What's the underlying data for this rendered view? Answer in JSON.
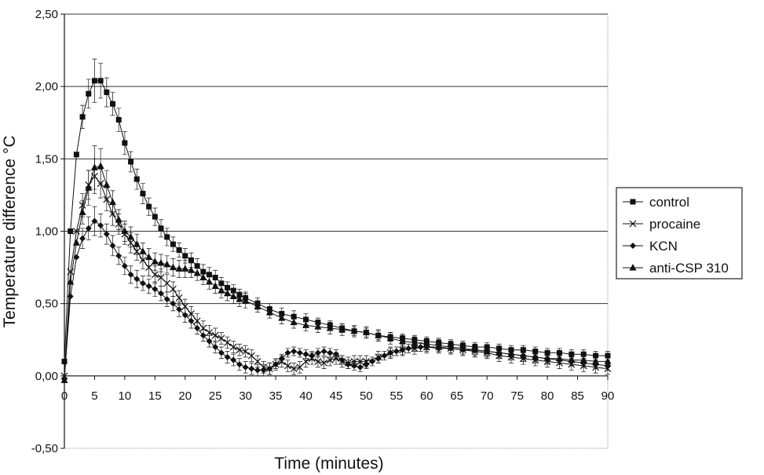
{
  "chart_data": {
    "type": "line",
    "title": "",
    "xlabel": "Time (minutes)",
    "ylabel": "Temperature difference °C",
    "xlim": [
      0,
      90
    ],
    "ylim": [
      -0.5,
      2.5
    ],
    "xticks": [
      0,
      5,
      10,
      15,
      20,
      25,
      30,
      35,
      40,
      45,
      50,
      55,
      60,
      65,
      70,
      75,
      80,
      85,
      90
    ],
    "xtick_labels": [
      "0",
      "5",
      "10",
      "15",
      "20",
      "25",
      "30",
      "35",
      "40",
      "45",
      "50",
      "55",
      "60",
      "65",
      "70",
      "75",
      "80",
      "85",
      "90"
    ],
    "yticks": [
      -0.5,
      0,
      0.5,
      1.0,
      1.5,
      2.0,
      2.5
    ],
    "ytick_labels": [
      "-0,50",
      "0,00",
      "0,50",
      "1,00",
      "1,50",
      "2,00",
      "2,50"
    ],
    "grid": "horizontal major gridlines",
    "legend_position": "right",
    "colors": {
      "series": "#111111",
      "grid": "#333333",
      "plot_border": "#999999"
    },
    "series": [
      {
        "name": "control",
        "marker": "square",
        "x": [
          0,
          1,
          2,
          3,
          4,
          5,
          6,
          7,
          8,
          9,
          10,
          11,
          12,
          13,
          14,
          15,
          16,
          17,
          18,
          19,
          20,
          21,
          22,
          23,
          24,
          25,
          26,
          27,
          28,
          29,
          30,
          32,
          34,
          36,
          38,
          40,
          42,
          44,
          46,
          48,
          50,
          52,
          54,
          56,
          58,
          60,
          62,
          64,
          66,
          68,
          70,
          72,
          74,
          76,
          78,
          80,
          82,
          84,
          86,
          88,
          90
        ],
        "y": [
          0.1,
          1.0,
          1.53,
          1.79,
          1.95,
          2.04,
          2.04,
          1.96,
          1.88,
          1.77,
          1.61,
          1.48,
          1.36,
          1.26,
          1.17,
          1.1,
          1.02,
          0.96,
          0.91,
          0.87,
          0.83,
          0.8,
          0.76,
          0.72,
          0.7,
          0.68,
          0.64,
          0.61,
          0.59,
          0.56,
          0.54,
          0.5,
          0.46,
          0.43,
          0.41,
          0.39,
          0.37,
          0.35,
          0.33,
          0.31,
          0.3,
          0.28,
          0.27,
          0.26,
          0.25,
          0.24,
          0.23,
          0.22,
          0.21,
          0.2,
          0.2,
          0.19,
          0.18,
          0.18,
          0.17,
          0.16,
          0.16,
          0.15,
          0.15,
          0.14,
          0.14
        ],
        "error": [
          0,
          0,
          0,
          0.08,
          0.1,
          0.15,
          0.12,
          0.1,
          0.08,
          0.08,
          0.08,
          0.07,
          0.07,
          0.07,
          0.06,
          0.06,
          0.06,
          0.06,
          0.05,
          0.05,
          0.05,
          0.05,
          0.05,
          0.05,
          0.05,
          0.05,
          0.04,
          0.04,
          0.04,
          0.04,
          0.04,
          0.04,
          0.04,
          0.04,
          0.04,
          0.04,
          0.03,
          0.03,
          0.03,
          0.03,
          0.03,
          0.03,
          0.03,
          0.03,
          0.03,
          0.03,
          0.03,
          0.03,
          0.03,
          0.03,
          0.03,
          0.03,
          0.03,
          0.03,
          0.03,
          0.03,
          0.03,
          0.03,
          0.03,
          0.03,
          0.03
        ]
      },
      {
        "name": "procaine",
        "marker": "x",
        "x": [
          0,
          1,
          2,
          3,
          4,
          5,
          6,
          7,
          8,
          9,
          10,
          11,
          12,
          13,
          14,
          15,
          16,
          17,
          18,
          19,
          20,
          21,
          22,
          23,
          24,
          25,
          26,
          27,
          28,
          29,
          30,
          31,
          32,
          33,
          34,
          35,
          36,
          37,
          38,
          39,
          40,
          41,
          42,
          43,
          44,
          45,
          46,
          47,
          48,
          49,
          50,
          52,
          54,
          56,
          58,
          60,
          62,
          64,
          66,
          68,
          70,
          72,
          74,
          76,
          78,
          80,
          82,
          84,
          86,
          88,
          90
        ],
        "y": [
          0.0,
          0.72,
          1.0,
          1.18,
          1.32,
          1.38,
          1.33,
          1.22,
          1.12,
          1.05,
          0.98,
          0.92,
          0.86,
          0.8,
          0.75,
          0.7,
          0.68,
          0.64,
          0.6,
          0.54,
          0.48,
          0.43,
          0.38,
          0.33,
          0.3,
          0.28,
          0.26,
          0.23,
          0.2,
          0.18,
          0.17,
          0.14,
          0.1,
          0.06,
          0.05,
          0.08,
          0.1,
          0.07,
          0.05,
          0.06,
          0.1,
          0.12,
          0.1,
          0.09,
          0.11,
          0.12,
          0.1,
          0.09,
          0.1,
          0.1,
          0.1,
          0.13,
          0.16,
          0.18,
          0.19,
          0.2,
          0.2,
          0.19,
          0.18,
          0.17,
          0.16,
          0.14,
          0.13,
          0.12,
          0.11,
          0.1,
          0.09,
          0.08,
          0.07,
          0.06,
          0.05
        ],
        "error": [
          0,
          0,
          0,
          0.08,
          0.1,
          0.12,
          0.1,
          0.08,
          0.08,
          0.07,
          0.07,
          0.07,
          0.06,
          0.06,
          0.06,
          0.06,
          0.06,
          0.06,
          0.05,
          0.05,
          0.05,
          0.05,
          0.05,
          0.05,
          0.05,
          0.05,
          0.04,
          0.04,
          0.04,
          0.04,
          0.04,
          0.04,
          0.04,
          0.04,
          0.04,
          0.04,
          0.04,
          0.04,
          0.04,
          0.04,
          0.04,
          0.04,
          0.04,
          0.04,
          0.04,
          0.04,
          0.04,
          0.04,
          0.04,
          0.04,
          0.04,
          0.04,
          0.04,
          0.04,
          0.04,
          0.04,
          0.04,
          0.04,
          0.04,
          0.04,
          0.04,
          0.04,
          0.04,
          0.04,
          0.04,
          0.04,
          0.04,
          0.04,
          0.04,
          0.04,
          0.04
        ]
      },
      {
        "name": "KCN",
        "marker": "diamond",
        "x": [
          0,
          1,
          2,
          3,
          4,
          5,
          6,
          7,
          8,
          9,
          10,
          11,
          12,
          13,
          14,
          15,
          16,
          17,
          18,
          19,
          20,
          21,
          22,
          23,
          24,
          25,
          26,
          27,
          28,
          29,
          30,
          31,
          32,
          33,
          34,
          35,
          36,
          37,
          38,
          39,
          40,
          41,
          42,
          43,
          44,
          45,
          46,
          47,
          48,
          49,
          50,
          51,
          52,
          53,
          54,
          55,
          56,
          57,
          58,
          59,
          60,
          62,
          64,
          66,
          68,
          70,
          72,
          74,
          76,
          78,
          80,
          82,
          84,
          86,
          88,
          90
        ],
        "y": [
          -0.02,
          0.55,
          0.82,
          0.95,
          1.02,
          1.07,
          1.04,
          0.98,
          0.9,
          0.83,
          0.76,
          0.7,
          0.67,
          0.64,
          0.62,
          0.6,
          0.57,
          0.53,
          0.5,
          0.46,
          0.42,
          0.38,
          0.33,
          0.28,
          0.24,
          0.2,
          0.16,
          0.13,
          0.11,
          0.08,
          0.06,
          0.05,
          0.04,
          0.04,
          0.05,
          0.08,
          0.12,
          0.16,
          0.17,
          0.16,
          0.15,
          0.14,
          0.16,
          0.17,
          0.16,
          0.15,
          0.11,
          0.08,
          0.07,
          0.06,
          0.08,
          0.1,
          0.12,
          0.14,
          0.16,
          0.17,
          0.18,
          0.19,
          0.2,
          0.2,
          0.2,
          0.19,
          0.19,
          0.18,
          0.18,
          0.17,
          0.16,
          0.15,
          0.14,
          0.13,
          0.12,
          0.11,
          0.1,
          0.09,
          0.08,
          0.07
        ],
        "error": [
          0,
          0,
          0,
          0.07,
          0.08,
          0.1,
          0.08,
          0.07,
          0.07,
          0.06,
          0.06,
          0.06,
          0.06,
          0.05,
          0.05,
          0.05,
          0.05,
          0.05,
          0.05,
          0.05,
          0.05,
          0.05,
          0.04,
          0.04,
          0.04,
          0.04,
          0.04,
          0.04,
          0.04,
          0.04,
          0.04,
          0.04,
          0.04,
          0.04,
          0.04,
          0.03,
          0.03,
          0.03,
          0.03,
          0.03,
          0.03,
          0.03,
          0.03,
          0.03,
          0.03,
          0.03,
          0.03,
          0.03,
          0.03,
          0.03,
          0.03,
          0.03,
          0.03,
          0.03,
          0.03,
          0.03,
          0.03,
          0.03,
          0.03,
          0.03,
          0.03,
          0.03,
          0.03,
          0.03,
          0.03,
          0.03,
          0.03,
          0.03,
          0.03,
          0.03,
          0.03,
          0.03,
          0.03,
          0.03,
          0.03,
          0.03
        ]
      },
      {
        "name": "anti-CSP 310",
        "marker": "triangle",
        "x": [
          0,
          1,
          2,
          3,
          4,
          5,
          6,
          7,
          8,
          9,
          10,
          11,
          12,
          13,
          14,
          15,
          16,
          17,
          18,
          19,
          20,
          21,
          22,
          23,
          24,
          25,
          26,
          27,
          28,
          29,
          30,
          32,
          34,
          36,
          38,
          40,
          42,
          44,
          46,
          48,
          50,
          52,
          54,
          56,
          58,
          60,
          62,
          64,
          66,
          68,
          70,
          72,
          74,
          76,
          78,
          80,
          82,
          84,
          86,
          88,
          90
        ],
        "y": [
          -0.03,
          0.65,
          0.92,
          1.13,
          1.3,
          1.44,
          1.45,
          1.32,
          1.2,
          1.08,
          1.0,
          0.96,
          0.91,
          0.86,
          0.82,
          0.79,
          0.78,
          0.77,
          0.75,
          0.74,
          0.74,
          0.73,
          0.71,
          0.68,
          0.65,
          0.62,
          0.59,
          0.57,
          0.55,
          0.53,
          0.52,
          0.48,
          0.44,
          0.4,
          0.37,
          0.35,
          0.34,
          0.33,
          0.32,
          0.31,
          0.3,
          0.28,
          0.26,
          0.24,
          0.23,
          0.22,
          0.21,
          0.2,
          0.19,
          0.18,
          0.17,
          0.16,
          0.15,
          0.14,
          0.13,
          0.12,
          0.12,
          0.11,
          0.11,
          0.1,
          0.1
        ],
        "error": [
          0,
          0,
          0,
          0.08,
          0.12,
          0.15,
          0.12,
          0.1,
          0.08,
          0.07,
          0.07,
          0.07,
          0.07,
          0.06,
          0.06,
          0.06,
          0.06,
          0.06,
          0.06,
          0.06,
          0.06,
          0.05,
          0.05,
          0.05,
          0.05,
          0.05,
          0.05,
          0.05,
          0.05,
          0.05,
          0.05,
          0.04,
          0.04,
          0.04,
          0.04,
          0.04,
          0.04,
          0.04,
          0.04,
          0.04,
          0.04,
          0.04,
          0.04,
          0.04,
          0.04,
          0.04,
          0.04,
          0.04,
          0.04,
          0.04,
          0.04,
          0.04,
          0.04,
          0.04,
          0.04,
          0.04,
          0.04,
          0.04,
          0.04,
          0.04,
          0.04
        ]
      }
    ]
  }
}
